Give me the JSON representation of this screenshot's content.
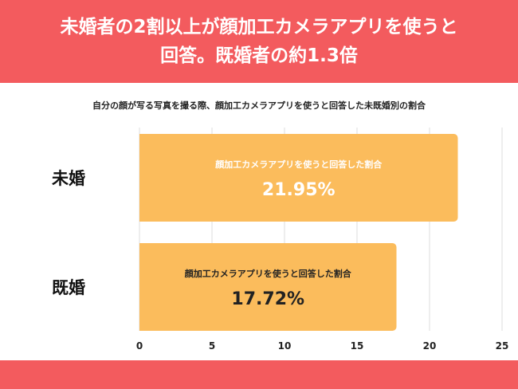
{
  "header": {
    "title_line1": "未婚者の2割以上が顔加工カメラアプリを使うと",
    "title_line2": "回答。既婚者の約1.3倍"
  },
  "colors": {
    "header_bg": "#f35b5e",
    "bar": "#fbbc5c",
    "grid": "#dddddd"
  },
  "chart_data": {
    "type": "bar",
    "orientation": "horizontal",
    "title": "自分の顔が写る写真を撮る際、顔加工カメラアプリを使うと回答した未既婚別の割合",
    "categories": [
      "未婚",
      "既婚"
    ],
    "values": [
      21.95,
      17.72
    ],
    "value_labels": [
      "21.95%",
      "17.72%"
    ],
    "bar_caption": "顔加工カメラアプリを使うと回答した割合",
    "xlim": [
      0,
      25
    ],
    "xticks": [
      0,
      5,
      10,
      15,
      20,
      25
    ],
    "grid": true
  }
}
